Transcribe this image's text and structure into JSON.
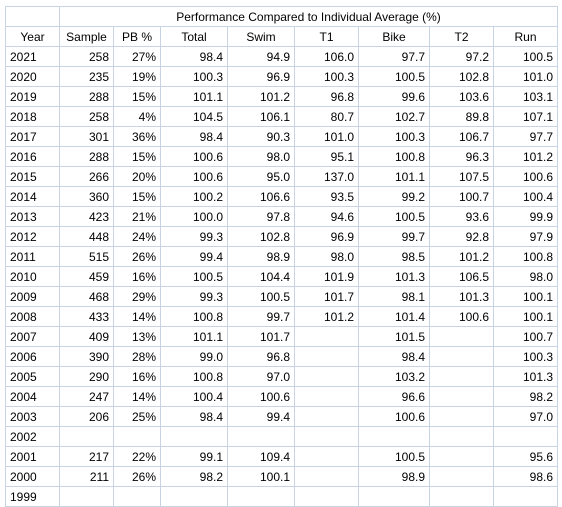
{
  "title": "Performance Compared to Individual Average (%)",
  "headers": [
    "Year",
    "Sample",
    "PB %",
    "Total",
    "Swim",
    "T1",
    "Bike",
    "T2",
    "Run"
  ],
  "rows": [
    [
      "2021",
      "258",
      "27%",
      "98.4",
      "94.9",
      "106.0",
      "97.7",
      "97.2",
      "100.5"
    ],
    [
      "2020",
      "235",
      "19%",
      "100.3",
      "96.9",
      "100.3",
      "100.5",
      "102.8",
      "101.0"
    ],
    [
      "2019",
      "288",
      "15%",
      "101.1",
      "101.2",
      "96.8",
      "99.6",
      "103.6",
      "103.1"
    ],
    [
      "2018",
      "258",
      "4%",
      "104.5",
      "106.1",
      "80.7",
      "102.7",
      "89.8",
      "107.1"
    ],
    [
      "2017",
      "301",
      "36%",
      "98.4",
      "90.3",
      "101.0",
      "100.3",
      "106.7",
      "97.7"
    ],
    [
      "2016",
      "288",
      "15%",
      "100.6",
      "98.0",
      "95.1",
      "100.8",
      "96.3",
      "101.2"
    ],
    [
      "2015",
      "266",
      "20%",
      "100.6",
      "95.0",
      "137.0",
      "101.1",
      "107.5",
      "100.6"
    ],
    [
      "2014",
      "360",
      "15%",
      "100.2",
      "106.6",
      "93.5",
      "99.2",
      "100.7",
      "100.4"
    ],
    [
      "2013",
      "423",
      "21%",
      "100.0",
      "97.8",
      "94.6",
      "100.5",
      "93.6",
      "99.9"
    ],
    [
      "2012",
      "448",
      "24%",
      "99.3",
      "102.8",
      "96.9",
      "99.7",
      "92.8",
      "97.9"
    ],
    [
      "2011",
      "515",
      "26%",
      "99.4",
      "98.9",
      "98.0",
      "98.5",
      "101.2",
      "100.8"
    ],
    [
      "2010",
      "459",
      "16%",
      "100.5",
      "104.4",
      "101.9",
      "101.3",
      "106.5",
      "98.0"
    ],
    [
      "2009",
      "468",
      "29%",
      "99.3",
      "100.5",
      "101.7",
      "98.1",
      "101.3",
      "100.1"
    ],
    [
      "2008",
      "433",
      "14%",
      "100.8",
      "99.7",
      "101.2",
      "101.4",
      "100.6",
      "100.1"
    ],
    [
      "2007",
      "409",
      "13%",
      "101.1",
      "101.7",
      "",
      "101.5",
      "",
      "100.7"
    ],
    [
      "2006",
      "390",
      "28%",
      "99.0",
      "96.8",
      "",
      "98.4",
      "",
      "100.3"
    ],
    [
      "2005",
      "290",
      "16%",
      "100.8",
      "97.0",
      "",
      "103.2",
      "",
      "101.3"
    ],
    [
      "2004",
      "247",
      "14%",
      "100.4",
      "100.6",
      "",
      "96.6",
      "",
      "98.2"
    ],
    [
      "2003",
      "206",
      "25%",
      "98.4",
      "99.4",
      "",
      "100.6",
      "",
      "97.0"
    ],
    [
      "2002",
      "",
      "",
      "",
      "",
      "",
      "",
      "",
      ""
    ],
    [
      "2001",
      "217",
      "22%",
      "99.1",
      "109.4",
      "",
      "100.5",
      "",
      "95.6"
    ],
    [
      "2000",
      "211",
      "26%",
      "98.2",
      "100.1",
      "",
      "98.9",
      "",
      "98.6"
    ],
    [
      "1999",
      "",
      "",
      "",
      "",
      "",
      "",
      "",
      ""
    ]
  ]
}
